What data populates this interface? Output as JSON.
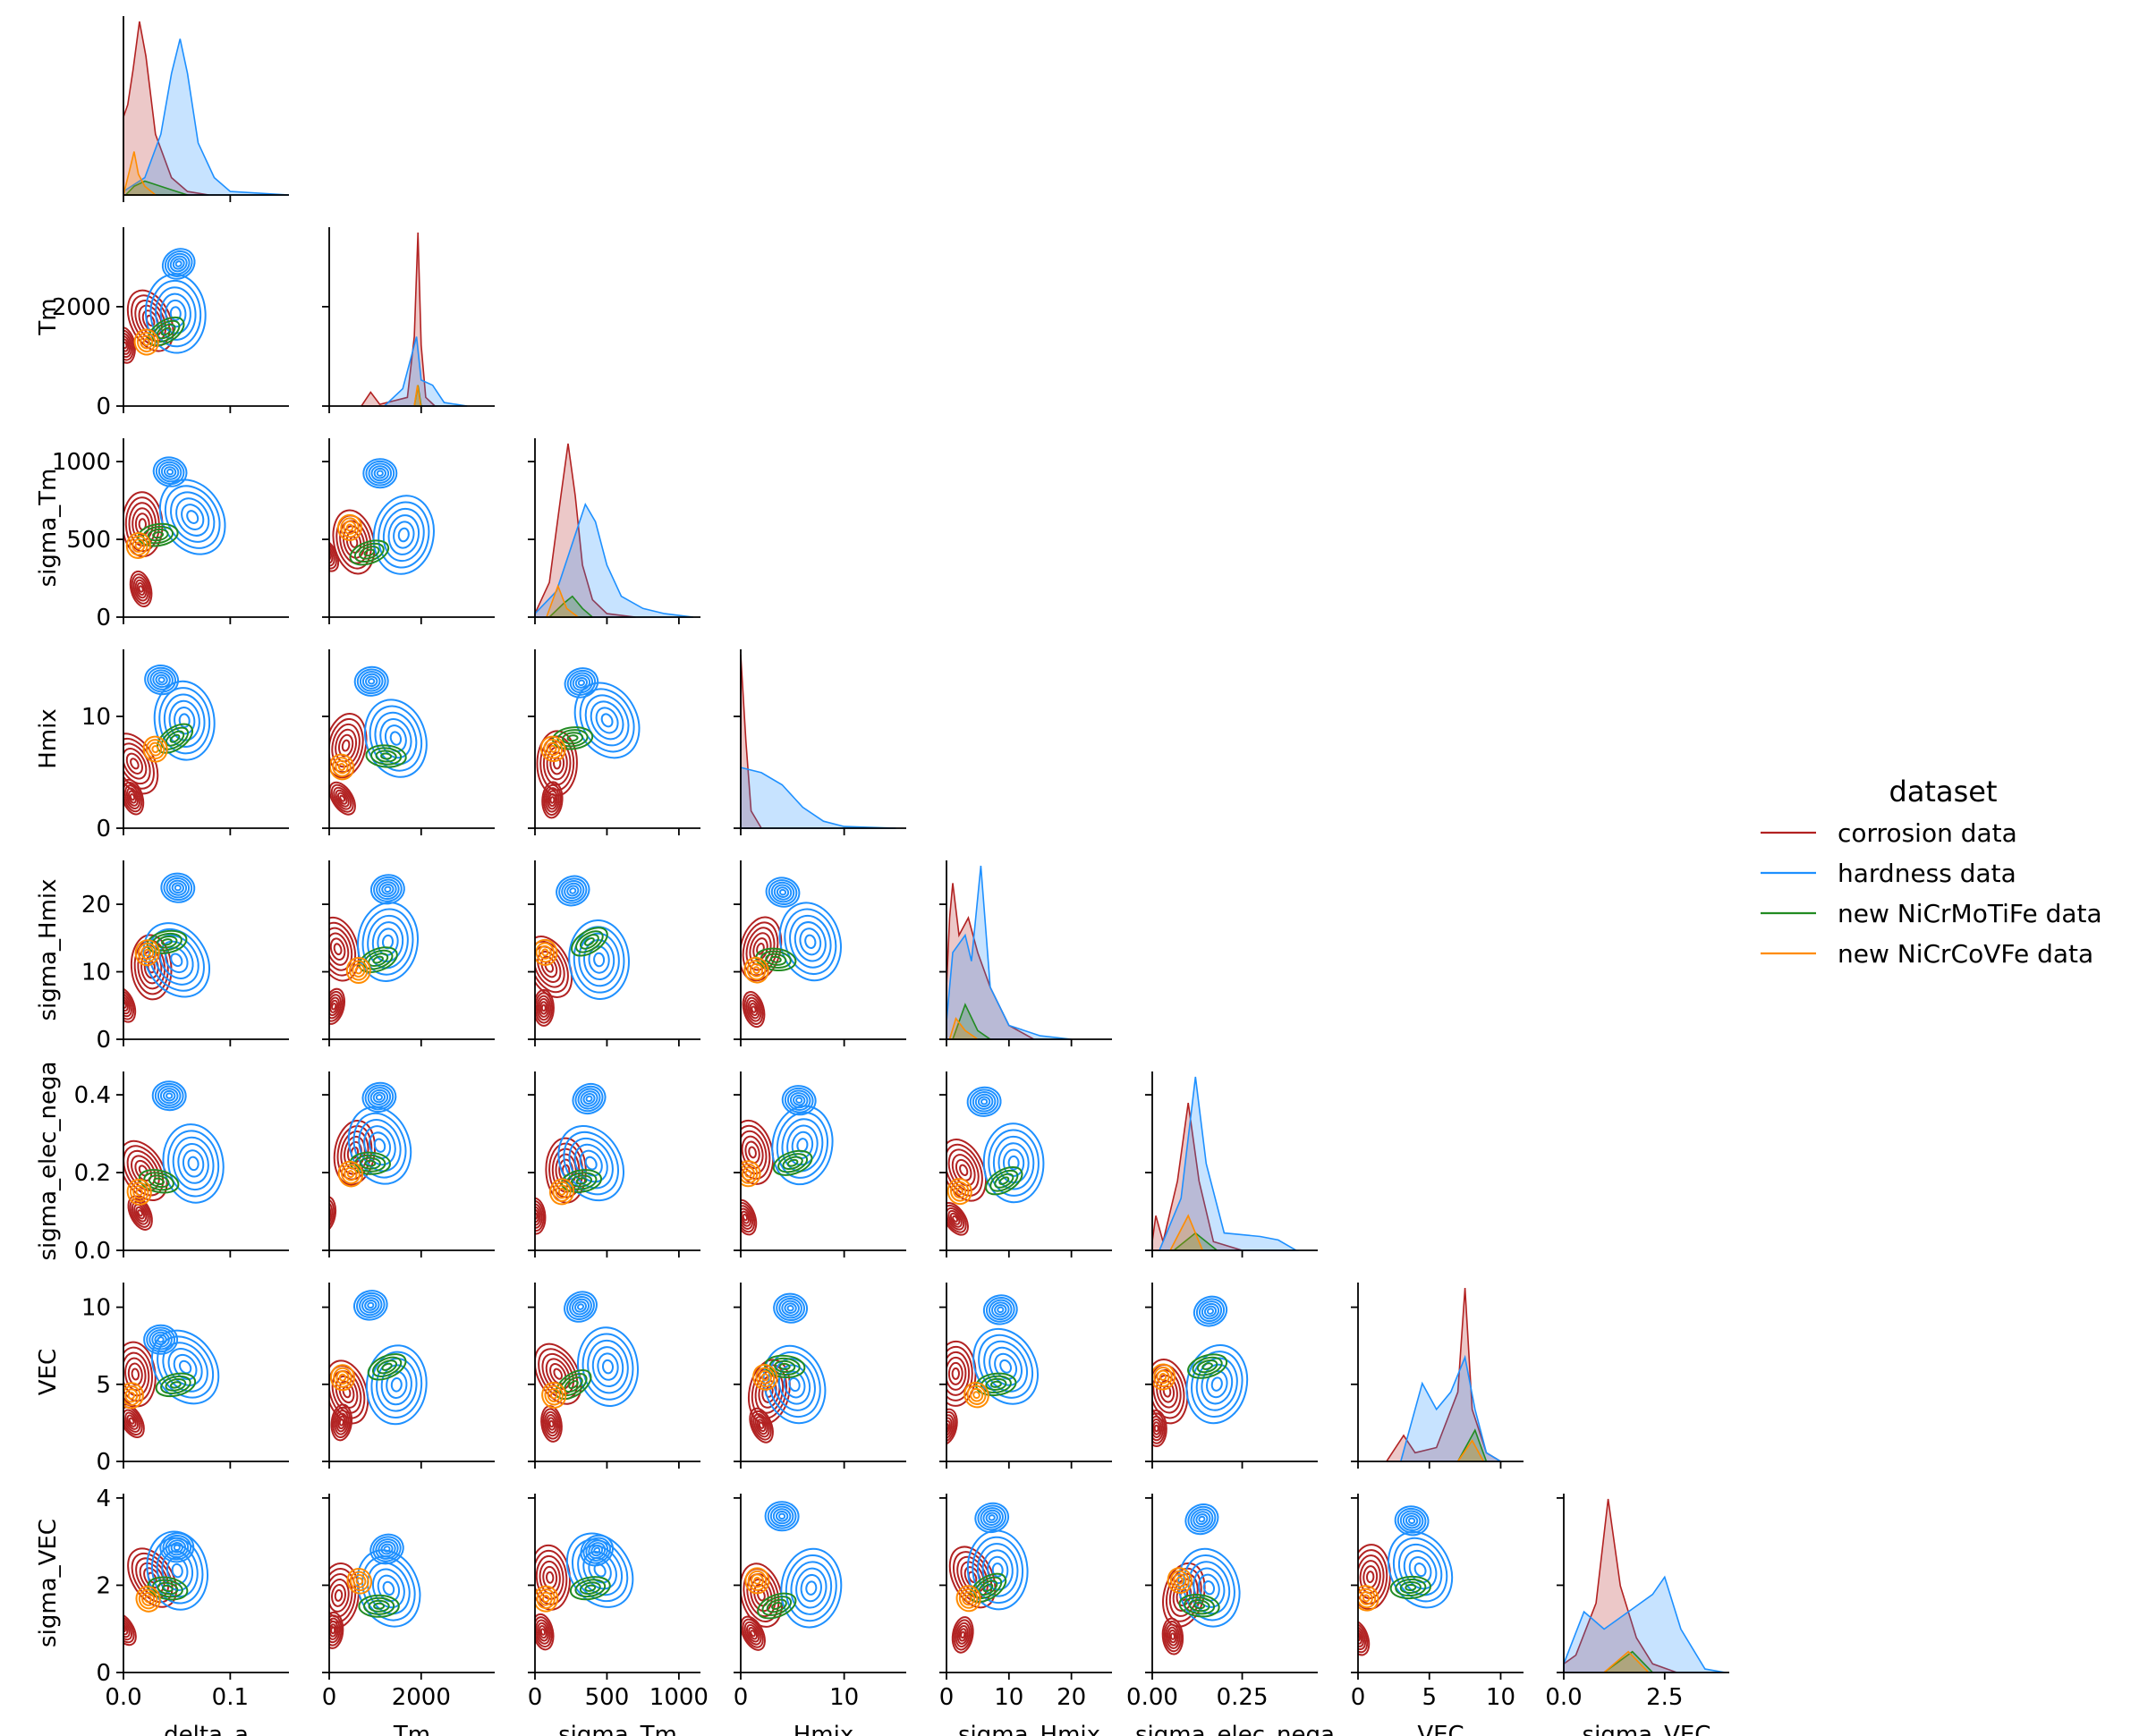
{
  "chart_data": {
    "type": "pairplot",
    "variables": [
      "delta_a",
      "Tm",
      "sigma_Tm",
      "Hmix",
      "sigma_Hmix",
      "sigma_elec_nega",
      "VEC",
      "sigma_VEC"
    ],
    "axes": {
      "delta_a": {
        "lim": [
          0,
          0.155
        ],
        "ticks": [
          0,
          0.1
        ],
        "tick_labels": [
          "0.0",
          "0.1"
        ]
      },
      "Tm": {
        "lim": [
          0,
          3600
        ],
        "ticks": [
          0,
          2000
        ],
        "tick_labels": [
          "0",
          "2000"
        ]
      },
      "sigma_Tm": {
        "lim": [
          0,
          1150
        ],
        "ticks": [
          0,
          500,
          1000
        ],
        "tick_labels": [
          "0",
          "500",
          "1000"
        ]
      },
      "Hmix": {
        "lim": [
          0,
          16
        ],
        "ticks": [
          0,
          10
        ],
        "tick_labels": [
          "0",
          "10"
        ]
      },
      "sigma_Hmix": {
        "lim": [
          0,
          26.5
        ],
        "ticks": [
          0,
          10,
          20
        ],
        "tick_labels": [
          "0",
          "10",
          "20"
        ]
      },
      "sigma_elec_nega": {
        "lim": [
          0,
          0.46
        ],
        "ticks": [
          0,
          0.2,
          0.4
        ],
        "tick_labels": [
          "0.0",
          "0.2",
          "0.4"
        ],
        "x_tick_labels": [
          "0.00",
          "0.25"
        ],
        "x_ticks": [
          0,
          0.25
        ]
      },
      "VEC": {
        "lim": [
          0,
          11.6
        ],
        "ticks": [
          0,
          5,
          10
        ],
        "tick_labels": [
          "0",
          "5",
          "10"
        ]
      },
      "sigma_VEC": {
        "lim": [
          0,
          4.1
        ],
        "ticks": [
          0,
          2,
          4
        ],
        "tick_labels": [
          "0",
          "2",
          "4"
        ],
        "x_tick_labels": [
          "0.0",
          "2.5"
        ],
        "x_ticks": [
          0,
          2.5
        ]
      }
    },
    "hue": "dataset",
    "legend": {
      "title": "dataset",
      "placement": "right",
      "entries": [
        {
          "label": "corrosion data",
          "color": "#b22222"
        },
        {
          "label": "hardness data",
          "color": "#1e90ff"
        },
        {
          "label": "new NiCrMoTiFe data",
          "color": "#228b22"
        },
        {
          "label": "new NiCrCoVFe data",
          "color": "#ff8c00"
        }
      ]
    },
    "diagonal": "kde",
    "lower": "kde-contour",
    "upper": "empty",
    "diagonal_density": {
      "delta_a": {
        "corrosion data": [
          [
            0,
            0.45
          ],
          [
            0.004,
            0.52
          ],
          [
            0.009,
            0.72
          ],
          [
            0.015,
            1.0
          ],
          [
            0.021,
            0.8
          ],
          [
            0.03,
            0.35
          ],
          [
            0.045,
            0.1
          ],
          [
            0.06,
            0.02
          ],
          [
            0.08,
            0.0
          ]
        ],
        "hardness data": [
          [
            0,
            0.02
          ],
          [
            0.02,
            0.1
          ],
          [
            0.035,
            0.35
          ],
          [
            0.045,
            0.7
          ],
          [
            0.053,
            0.9
          ],
          [
            0.06,
            0.7
          ],
          [
            0.07,
            0.3
          ],
          [
            0.085,
            0.1
          ],
          [
            0.1,
            0.02
          ],
          [
            0.155,
            0.0
          ]
        ],
        "new NiCrMoTiFe data": [
          [
            0.002,
            0.0
          ],
          [
            0.01,
            0.05
          ],
          [
            0.02,
            0.08
          ],
          [
            0.03,
            0.06
          ],
          [
            0.045,
            0.03
          ],
          [
            0.06,
            0.0
          ]
        ],
        "new NiCrCoVFe data": [
          [
            0,
            0.0
          ],
          [
            0.006,
            0.15
          ],
          [
            0.01,
            0.25
          ],
          [
            0.014,
            0.12
          ],
          [
            0.02,
            0.05
          ],
          [
            0.03,
            0.0
          ]
        ]
      },
      "Tm": {
        "corrosion data": [
          [
            700,
            0.0
          ],
          [
            900,
            0.08
          ],
          [
            1100,
            0.01
          ],
          [
            1700,
            0.05
          ],
          [
            1850,
            0.4
          ],
          [
            1930,
            1.0
          ],
          [
            2000,
            0.35
          ],
          [
            2100,
            0.05
          ],
          [
            2300,
            0.0
          ]
        ],
        "hardness data": [
          [
            1200,
            0.0
          ],
          [
            1600,
            0.1
          ],
          [
            1800,
            0.3
          ],
          [
            1900,
            0.4
          ],
          [
            2000,
            0.15
          ],
          [
            2250,
            0.12
          ],
          [
            2500,
            0.02
          ],
          [
            3000,
            0.0
          ]
        ],
        "new NiCrMoTiFe data": [
          [
            1850,
            0.0
          ],
          [
            1930,
            0.12
          ],
          [
            2000,
            0.0
          ]
        ],
        "new NiCrCoVFe data": [
          [
            1850,
            0.0
          ],
          [
            1920,
            0.12
          ],
          [
            1990,
            0.0
          ]
        ]
      },
      "sigma_Tm": {
        "corrosion data": [
          [
            0,
            0.02
          ],
          [
            100,
            0.2
          ],
          [
            180,
            0.7
          ],
          [
            230,
            1.0
          ],
          [
            280,
            0.7
          ],
          [
            330,
            0.3
          ],
          [
            400,
            0.1
          ],
          [
            500,
            0.02
          ],
          [
            700,
            0.0
          ]
        ],
        "hardness data": [
          [
            0,
            0.02
          ],
          [
            150,
            0.15
          ],
          [
            250,
            0.4
          ],
          [
            350,
            0.65
          ],
          [
            420,
            0.55
          ],
          [
            500,
            0.3
          ],
          [
            600,
            0.12
          ],
          [
            750,
            0.05
          ],
          [
            900,
            0.02
          ],
          [
            1100,
            0.0
          ]
        ],
        "new NiCrMoTiFe data": [
          [
            100,
            0.0
          ],
          [
            200,
            0.08
          ],
          [
            260,
            0.12
          ],
          [
            330,
            0.05
          ],
          [
            400,
            0.0
          ]
        ],
        "new NiCrCoVFe data": [
          [
            80,
            0.0
          ],
          [
            160,
            0.18
          ],
          [
            220,
            0.05
          ],
          [
            300,
            0.0
          ]
        ]
      },
      "Hmix": {
        "corrosion data": [
          [
            0,
            1.0
          ],
          [
            0.5,
            0.5
          ],
          [
            1.0,
            0.1
          ],
          [
            2.0,
            0.0
          ]
        ],
        "hardness data": [
          [
            0,
            0.35
          ],
          [
            2,
            0.32
          ],
          [
            4,
            0.25
          ],
          [
            6,
            0.12
          ],
          [
            8,
            0.04
          ],
          [
            10,
            0.01
          ],
          [
            15,
            0.0
          ]
        ]
      },
      "sigma_Hmix": {
        "corrosion data": [
          [
            0,
            0.3
          ],
          [
            0.5,
            0.7
          ],
          [
            1,
            0.9
          ],
          [
            2,
            0.6
          ],
          [
            3.5,
            0.7
          ],
          [
            5,
            0.5
          ],
          [
            7,
            0.3
          ],
          [
            10,
            0.08
          ],
          [
            14,
            0.0
          ]
        ],
        "hardness data": [
          [
            0,
            0.1
          ],
          [
            1,
            0.5
          ],
          [
            3,
            0.6
          ],
          [
            4,
            0.45
          ],
          [
            5.5,
            1.0
          ],
          [
            7,
            0.3
          ],
          [
            10,
            0.08
          ],
          [
            15,
            0.02
          ],
          [
            20,
            0.0
          ]
        ],
        "new NiCrMoTiFe data": [
          [
            1,
            0.0
          ],
          [
            3,
            0.2
          ],
          [
            5,
            0.05
          ],
          [
            7,
            0.0
          ]
        ],
        "new NiCrCoVFe data": [
          [
            0.5,
            0.0
          ],
          [
            1.5,
            0.12
          ],
          [
            3,
            0.05
          ],
          [
            5,
            0.0
          ]
        ]
      },
      "sigma_elec_nega": {
        "corrosion data": [
          [
            0,
            0.05
          ],
          [
            0.01,
            0.2
          ],
          [
            0.03,
            0.05
          ],
          [
            0.07,
            0.4
          ],
          [
            0.1,
            0.85
          ],
          [
            0.13,
            0.4
          ],
          [
            0.17,
            0.05
          ],
          [
            0.25,
            0.0
          ]
        ],
        "hardness data": [
          [
            0.02,
            0.0
          ],
          [
            0.08,
            0.3
          ],
          [
            0.12,
            1.0
          ],
          [
            0.15,
            0.5
          ],
          [
            0.2,
            0.1
          ],
          [
            0.3,
            0.08
          ],
          [
            0.35,
            0.06
          ],
          [
            0.4,
            0.0
          ]
        ],
        "new NiCrMoTiFe data": [
          [
            0.06,
            0.0
          ],
          [
            0.12,
            0.1
          ],
          [
            0.18,
            0.0
          ]
        ],
        "new NiCrCoVFe data": [
          [
            0.05,
            0.0
          ],
          [
            0.1,
            0.2
          ],
          [
            0.14,
            0.0
          ]
        ]
      },
      "VEC": {
        "corrosion data": [
          [
            2,
            0.0
          ],
          [
            3.2,
            0.15
          ],
          [
            4,
            0.05
          ],
          [
            5.5,
            0.08
          ],
          [
            7,
            0.4
          ],
          [
            7.5,
            1.0
          ],
          [
            8,
            0.3
          ],
          [
            9,
            0.05
          ],
          [
            10,
            0.0
          ]
        ],
        "hardness data": [
          [
            3,
            0.0
          ],
          [
            4.5,
            0.45
          ],
          [
            5.5,
            0.3
          ],
          [
            6.5,
            0.4
          ],
          [
            7.5,
            0.6
          ],
          [
            8.2,
            0.3
          ],
          [
            9,
            0.05
          ],
          [
            10,
            0.0
          ]
        ],
        "new NiCrMoTiFe data": [
          [
            7,
            0.0
          ],
          [
            8.2,
            0.18
          ],
          [
            9,
            0.0
          ]
        ],
        "new NiCrCoVFe data": [
          [
            7,
            0.0
          ],
          [
            8,
            0.12
          ],
          [
            8.8,
            0.0
          ]
        ]
      },
      "sigma_VEC": {
        "corrosion data": [
          [
            0,
            0.05
          ],
          [
            0.3,
            0.1
          ],
          [
            0.8,
            0.4
          ],
          [
            1.1,
            1.0
          ],
          [
            1.4,
            0.5
          ],
          [
            1.8,
            0.2
          ],
          [
            2.2,
            0.05
          ],
          [
            2.8,
            0.0
          ]
        ],
        "hardness data": [
          [
            0,
            0.05
          ],
          [
            0.5,
            0.35
          ],
          [
            1,
            0.25
          ],
          [
            1.6,
            0.35
          ],
          [
            2.2,
            0.45
          ],
          [
            2.5,
            0.55
          ],
          [
            2.9,
            0.25
          ],
          [
            3.5,
            0.02
          ],
          [
            4,
            0.0
          ]
        ],
        "new NiCrMoTiFe data": [
          [
            1,
            0.0
          ],
          [
            1.7,
            0.12
          ],
          [
            2.2,
            0.0
          ]
        ],
        "new NiCrCoVFe data": [
          [
            1,
            0.0
          ],
          [
            1.6,
            0.12
          ],
          [
            2.1,
            0.0
          ]
        ]
      }
    }
  }
}
